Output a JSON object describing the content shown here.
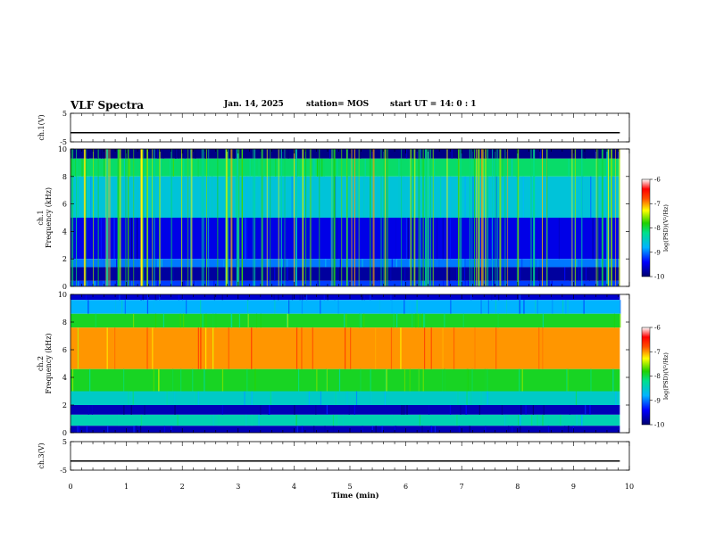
{
  "header": {
    "title": "VLF Spectra",
    "date": "Jan. 14, 2025",
    "station": "station= MOS",
    "start": "start UT =   14: 0  : 1"
  },
  "chart_data": [
    {
      "type": "line",
      "panel": "ch.1 waveform",
      "ylabel": "ch.1(V)",
      "ylim": [
        -5,
        5
      ],
      "yticks": [
        5,
        -5
      ],
      "x": [
        0,
        9.83
      ],
      "values": [
        -1.8,
        -1.8
      ]
    },
    {
      "type": "heatmap",
      "panel": "ch.1 spectrogram",
      "ylabel": "ch.1\nFrequency (kHz)",
      "ylim": [
        0,
        10
      ],
      "yticks": [
        0,
        2,
        4,
        6,
        8,
        10
      ],
      "xlim": [
        0,
        9.83
      ],
      "colorbar": {
        "label": "log(PSD)(V²/Hz)",
        "range": [
          -10,
          -6
        ],
        "ticks": [
          -6,
          -7,
          -8,
          -9,
          -10
        ]
      },
      "bands": [
        {
          "fmin": 9.3,
          "fmax": 10.0,
          "level": -9.9
        },
        {
          "fmin": 8.0,
          "fmax": 9.3,
          "level": -8.1
        },
        {
          "fmin": 5.0,
          "fmax": 8.0,
          "level": -8.6
        },
        {
          "fmin": 2.0,
          "fmax": 5.0,
          "level": -9.5
        },
        {
          "fmin": 1.4,
          "fmax": 2.0,
          "level": -9.0
        },
        {
          "fmin": 0.4,
          "fmax": 1.4,
          "level": -9.8
        },
        {
          "fmin": 0.0,
          "fmax": 0.4,
          "level": -9.2
        }
      ],
      "sferics": "vertical impulsive bursts up to -7 across full band"
    },
    {
      "type": "heatmap",
      "panel": "ch.2 spectrogram",
      "ylabel": "ch.2\nFrequency (kHz)",
      "ylim": [
        0,
        10
      ],
      "yticks": [
        0,
        2,
        4,
        6,
        8,
        10
      ],
      "xlim": [
        0,
        9.83
      ],
      "colorbar": {
        "label": "log(PSD)(V²/Hz)",
        "range": [
          -10,
          -6
        ],
        "ticks": [
          -6,
          -7,
          -8,
          -9,
          -10
        ]
      },
      "bands": [
        {
          "fmin": 9.6,
          "fmax": 10.0,
          "level": -9.6
        },
        {
          "fmin": 8.6,
          "fmax": 9.6,
          "level": -8.8
        },
        {
          "fmin": 7.6,
          "fmax": 8.6,
          "level": -7.9
        },
        {
          "fmin": 4.6,
          "fmax": 7.6,
          "level": -7.0
        },
        {
          "fmin": 3.0,
          "fmax": 4.6,
          "level": -7.9
        },
        {
          "fmin": 2.0,
          "fmax": 3.0,
          "level": -8.5
        },
        {
          "fmin": 1.3,
          "fmax": 2.0,
          "level": -9.7
        },
        {
          "fmin": 0.5,
          "fmax": 1.3,
          "level": -8.4
        },
        {
          "fmin": 0.0,
          "fmax": 0.5,
          "level": -9.7
        }
      ]
    },
    {
      "type": "line",
      "panel": "ch.3 waveform",
      "ylabel": "ch.3(V)",
      "ylim": [
        -5,
        5
      ],
      "yticks": [
        5,
        -5
      ],
      "x": [
        0,
        9.83
      ],
      "values": [
        -1.8,
        -1.8
      ]
    }
  ],
  "xaxis": {
    "label": "Time (min)",
    "range": [
      0,
      10
    ],
    "ticks": [
      "0",
      "1",
      "2",
      "3",
      "4",
      "5",
      "6",
      "7",
      "8",
      "9",
      "10"
    ]
  }
}
